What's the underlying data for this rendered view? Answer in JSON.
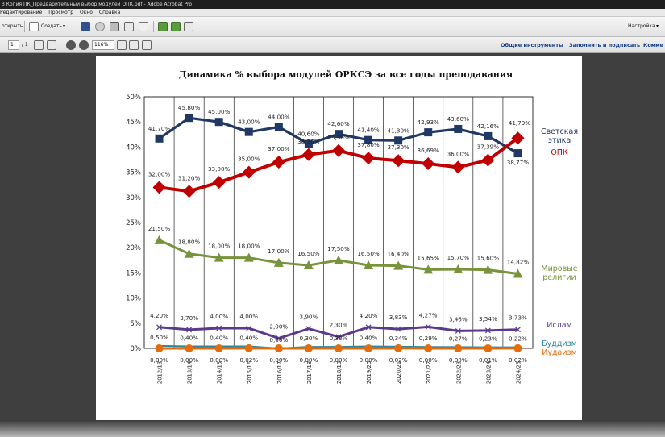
{
  "window": {
    "title": "3 Копия ПК_Предварительный выбор модулей ОПК.pdf - Adobe Acrobat Pro"
  },
  "menu": [
    "Редактирование",
    "Просмотр",
    "Окно",
    "Справка"
  ],
  "toolbar": {
    "open_label": "открыть",
    "create_label": "Создать",
    "settings_label": "Настройка"
  },
  "navbar": {
    "page_current": "1",
    "page_total": "/ 1",
    "zoom": "116%",
    "tools_link": "Общие инструменты",
    "fill_sign_link": "Заполнить и подписать",
    "comment_link": "Комме"
  },
  "chart_data": {
    "type": "line",
    "title": "Динамика % выбора  модулей ОРКСЭ за все годы преподавания",
    "ylim": [
      0,
      50
    ],
    "ytick_step": 5,
    "ytick_suffix": "%",
    "grid": "vertical-year-bands",
    "categories": [
      "2012/13",
      "2013/14",
      "2014/15",
      "2015/16",
      "2016/17",
      "2017/18",
      "2018/19",
      "2019/20",
      "2020/21",
      "2021/22",
      "2022/23",
      "2023/24",
      "2024/25"
    ],
    "series": [
      {
        "name": "Светская этика",
        "color": "#1f3864",
        "marker": "square",
        "values": [
          41.7,
          45.8,
          45.0,
          43.0,
          44.0,
          40.6,
          42.6,
          41.4,
          41.3,
          42.93,
          43.6,
          42.16,
          38.77
        ],
        "labels": [
          "41,70%",
          "45,80%",
          "45,00%",
          "43,00%",
          "44,00%",
          "40,60%",
          "42,60%",
          "41,40%",
          "41,30%",
          "42,93%",
          "43,60%",
          "42,16%",
          "38,77%"
        ]
      },
      {
        "name": "ОПК",
        "color": "#c00000",
        "marker": "diamond",
        "values": [
          32.0,
          31.2,
          33.0,
          35.0,
          37.0,
          38.5,
          39.3,
          37.8,
          37.3,
          36.69,
          36.0,
          37.39,
          41.79
        ],
        "labels": [
          "32,00%",
          "31,20%",
          "33,00%",
          "35,00%",
          "37,00%",
          "38,50%",
          "39,30%",
          "37,80%",
          "37,30%",
          "36,69%",
          "36,00%",
          "37,39%",
          "41,79%"
        ]
      },
      {
        "name": "Мировые религии",
        "color": "#77933c",
        "marker": "triangle",
        "values": [
          21.5,
          18.8,
          18.0,
          18.0,
          17.0,
          16.5,
          17.5,
          16.5,
          16.4,
          15.65,
          15.7,
          15.6,
          14.82
        ],
        "labels": [
          "21,50%",
          "18,80%",
          "18,00%",
          "18,00%",
          "17,00%",
          "16,50%",
          "17,50%",
          "16,50%",
          "16,40%",
          "15,65%",
          "15,70%",
          "15,60%",
          "14,82%"
        ]
      },
      {
        "name": "Ислам",
        "color": "#5b3a8c",
        "marker": "x",
        "values": [
          4.2,
          3.7,
          4.0,
          4.0,
          2.0,
          3.9,
          2.3,
          4.2,
          3.83,
          4.27,
          3.46,
          3.54,
          3.73
        ],
        "labels": [
          "4,20%",
          "3,70%",
          "4,00%",
          "4,00%",
          "2,00%",
          "3,90%",
          "2,30%",
          "4,20%",
          "3,83%",
          "4,27%",
          "3,46%",
          "3,54%",
          "3,73%"
        ]
      },
      {
        "name": "Буддизм",
        "color": "#31859c",
        "marker": "none",
        "values": [
          0.5,
          0.4,
          0.4,
          0.4,
          0.0,
          0.3,
          0.3,
          0.4,
          0.34,
          0.29,
          0.27,
          0.23,
          0.22
        ],
        "labels": [
          "0,50%",
          "0,40%",
          "0,40%",
          "0,40%",
          "0,00%",
          "0,30%",
          "0,30%",
          "0,40%",
          "0,34%",
          "0,29%",
          "0,27%",
          "0,23%",
          "0,22%"
        ]
      },
      {
        "name": "Иудаизм",
        "color": "#e46c0a",
        "marker": "circle",
        "values": [
          0.0,
          0.0,
          0.0,
          0.02,
          0.0,
          0.0,
          0.0,
          0.0,
          0.02,
          0.0,
          0.0,
          0.01,
          0.02
        ],
        "labels": [
          "0,00%",
          "0,00%",
          "0,00%",
          "0,02%",
          "0,00%",
          "0,00%",
          "0,00%",
          "0,00%",
          "0,02%",
          "0,00%",
          "0,00%",
          "0,01%",
          "0,02%"
        ]
      }
    ]
  }
}
